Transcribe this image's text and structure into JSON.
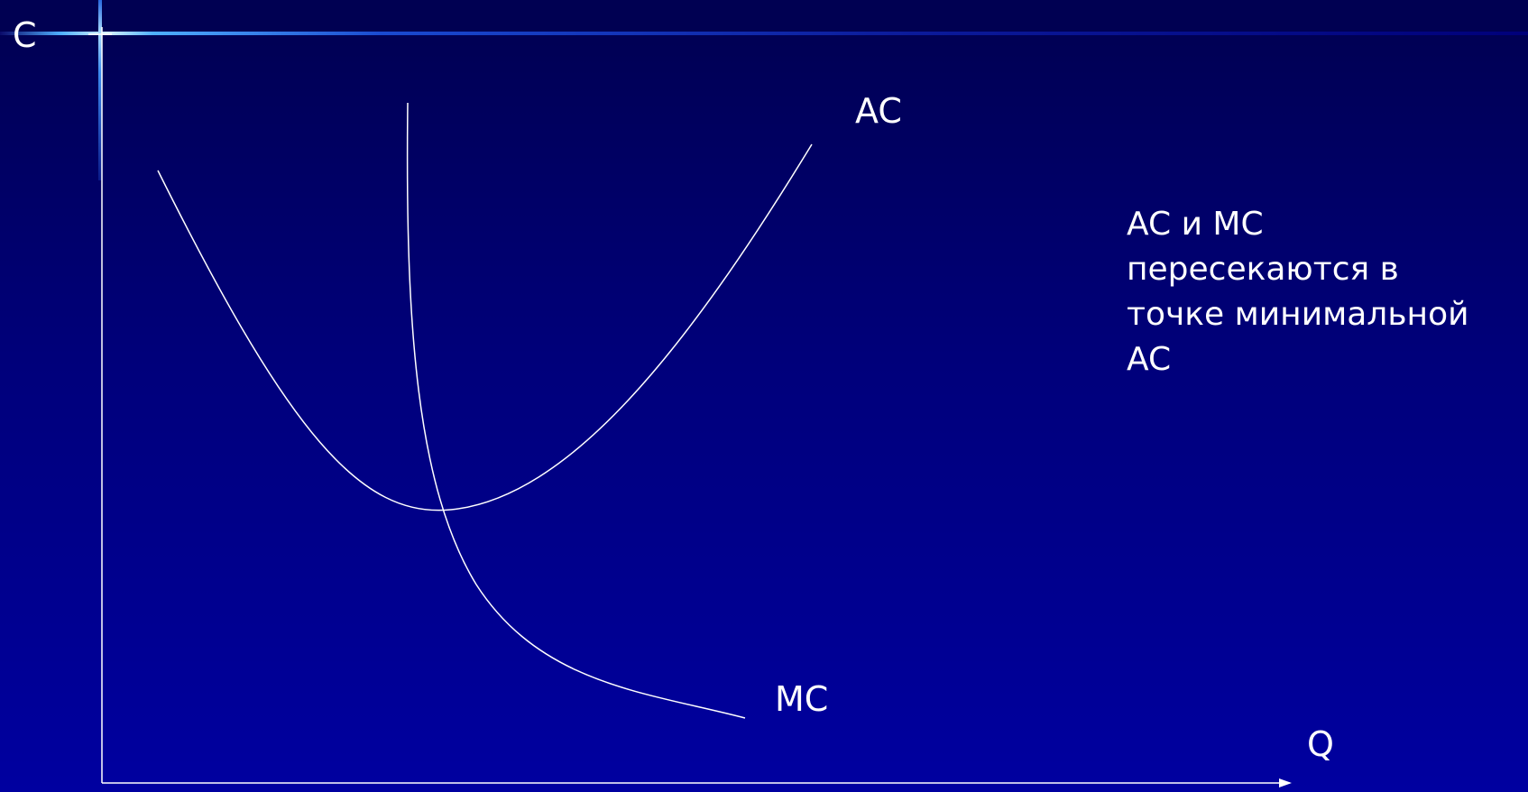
{
  "labels": {
    "y_axis": "C",
    "x_axis": "Q",
    "ac_curve": "AC",
    "mc_curve": "MC"
  },
  "note": {
    "lines": [
      "AC и MC",
      "пересекаются в",
      "точке минимальной",
      "AC"
    ]
  },
  "colors": {
    "background": "#00007a",
    "lines": "#ffffff",
    "text": "#ffffff"
  }
}
